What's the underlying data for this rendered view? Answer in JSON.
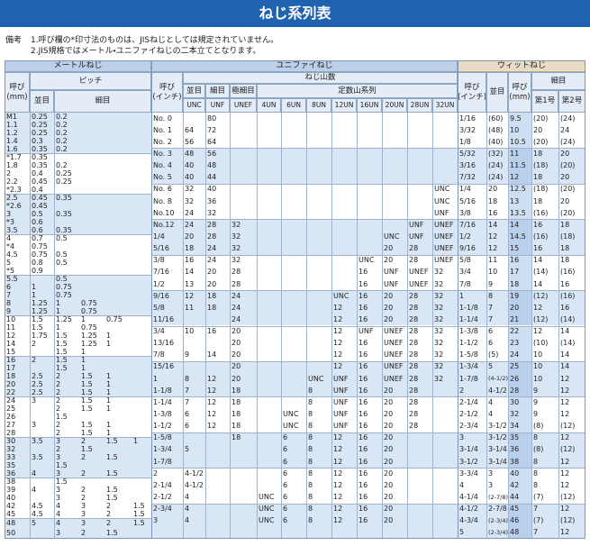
{
  "header": {
    "title": "ねじ系列表",
    "notes_label": "備考",
    "notes": [
      "1.呼び欄の*印寸法のものは、JISねじとしては規定されていません。",
      "2.JIS規格ではメートル・ユニファイねじの二本立てとなります。"
    ]
  },
  "metric": {
    "title": "メートルねじ",
    "nominal": [
      "呼び",
      "(mm)"
    ],
    "pitch": "ピッチ",
    "coarse": "並目",
    "fine": "細目",
    "blocks": [
      [
        [
          "M1",
          "0.25",
          "0.2"
        ],
        [
          "1.1",
          "0.25",
          "0.2"
        ],
        [
          "1.2",
          "0.25",
          "0.2"
        ],
        [
          "1.4",
          "0.3",
          "0.2"
        ],
        [
          "1.6",
          "0.35",
          "0.2"
        ]
      ],
      [
        [
          "*1.7",
          "0.35"
        ],
        [
          "1.8",
          "0.35",
          "0.2"
        ],
        [
          "2",
          "0.4",
          "0.25"
        ],
        [
          "2.2",
          "0.45",
          "0.25"
        ],
        [
          "*2.3",
          "0.4"
        ]
      ],
      [
        [
          "2.5",
          "0.45",
          "0.35"
        ],
        [
          "*2.6",
          "0.45"
        ],
        [
          "3",
          "0.5",
          "0.35"
        ],
        [
          "*3",
          "0.6"
        ],
        [
          "3.5",
          "0.6",
          "0.35"
        ]
      ],
      [
        [
          "4",
          "0.7",
          "0.5"
        ],
        [
          "*4",
          "0.75"
        ],
        [
          "4.5",
          "0.75",
          "0.5"
        ],
        [
          "5",
          "0.8",
          "0.5"
        ],
        [
          "*5",
          "0.9"
        ]
      ],
      [
        [
          "5.5",
          null,
          "0.5"
        ],
        [
          "6",
          "1",
          "0.75"
        ],
        [
          "7",
          "1",
          "0.75"
        ],
        [
          "8",
          "1.25",
          "1",
          "0.75"
        ],
        [
          "9",
          "1.25",
          "1",
          "0.75"
        ]
      ],
      [
        [
          "10",
          "1.5",
          "1.25",
          "1",
          "0.75"
        ],
        [
          "11",
          "1.5",
          "1",
          "0.75"
        ],
        [
          "12",
          "1.75",
          "1.5",
          "1.25",
          "1"
        ],
        [
          "14",
          "2",
          "1.5",
          "1.25",
          "1"
        ],
        [
          "15",
          null,
          "1.5",
          "1"
        ]
      ],
      [
        [
          "16",
          "2",
          "1.5",
          "1"
        ],
        [
          "17",
          null,
          "1.5",
          "1"
        ],
        [
          "18",
          "2.5",
          "2",
          "1.5",
          "1"
        ],
        [
          "20",
          "2.5",
          "2",
          "1.5",
          "1"
        ],
        [
          "22",
          "2.5",
          "2",
          "1.5",
          "1"
        ]
      ],
      [
        [
          "24",
          "3",
          "2",
          "1.5",
          "1"
        ],
        [
          "25",
          null,
          "2",
          "1.5",
          "1"
        ],
        [
          "26",
          null,
          "1.5"
        ],
        [
          "27",
          "3",
          "2",
          "1.5",
          "1"
        ],
        [
          "28",
          null,
          "2",
          "1.5",
          "1"
        ]
      ],
      [
        [
          "30",
          "3.5",
          "3",
          "2",
          "1.5",
          "1"
        ],
        [
          "32",
          null,
          "2",
          "1.5"
        ],
        [
          "33",
          "3.5",
          "3",
          "2",
          "1.5"
        ],
        [
          "35",
          null,
          "1.5"
        ],
        [
          "36",
          "4",
          "3",
          "2",
          "1.5"
        ]
      ],
      [
        [
          "38",
          null,
          "1.5"
        ],
        [
          "39",
          "4",
          "3",
          "2",
          "1.5"
        ],
        [
          "40",
          null,
          "3",
          "2",
          "1.5"
        ],
        [
          "42",
          "4.5",
          "4",
          "3",
          "2",
          "1.5"
        ],
        [
          "45",
          "4.5",
          "4",
          "3",
          "2",
          "1.5"
        ]
      ],
      [
        [
          "48",
          "5",
          "4",
          "3",
          "2",
          "1.5"
        ],
        [
          "50",
          null,
          "3",
          "2",
          "1.5"
        ]
      ]
    ]
  },
  "unified": {
    "title": "ユニファイねじ",
    "nominal": [
      "呼び",
      "(インチ)"
    ],
    "threads": "ねじ山数",
    "grades": [
      "並目",
      "細目",
      "極細目"
    ],
    "constant": "定数山系列",
    "codes": [
      "UNC",
      "UNF",
      "UNEF",
      "4UN",
      "6UN",
      "8UN",
      "12UN",
      "16UN",
      "20UN",
      "28UN",
      "32UN"
    ],
    "blocks": [
      [
        [
          "No. 0",
          null,
          "80"
        ],
        [
          "No. 1",
          "64",
          "72"
        ],
        [
          "No. 2",
          "56",
          "64"
        ]
      ],
      [
        [
          "No. 3",
          "48",
          "56"
        ],
        [
          "No. 4",
          "40",
          "48"
        ],
        [
          "No. 5",
          "40",
          "44"
        ]
      ],
      [
        [
          "No. 6",
          "32",
          "40",
          null,
          null,
          null,
          null,
          null,
          null,
          null,
          null,
          "UNC"
        ],
        [
          "No. 8",
          "32",
          "36",
          null,
          null,
          null,
          null,
          null,
          null,
          null,
          null,
          "UNC"
        ],
        [
          "No.10",
          "24",
          "32",
          null,
          null,
          null,
          null,
          null,
          null,
          null,
          null,
          "UNF"
        ]
      ],
      [
        [
          "No.12",
          "24",
          "28",
          "32",
          null,
          null,
          null,
          null,
          null,
          null,
          "UNF",
          "UNEF"
        ],
        [
          "1/4",
          "20",
          "28",
          "32",
          null,
          null,
          null,
          null,
          null,
          "UNC",
          "UNF",
          "UNEF"
        ],
        [
          "5/16",
          "18",
          "24",
          "32",
          null,
          null,
          null,
          null,
          null,
          "20",
          "28",
          "UNEF"
        ]
      ],
      [
        [
          "3/8",
          "16",
          "24",
          "32",
          null,
          null,
          null,
          null,
          "UNC",
          "20",
          "28",
          "UNEF"
        ],
        [
          "7/16",
          "14",
          "20",
          "28",
          null,
          null,
          null,
          null,
          "16",
          "UNF",
          "UNEF",
          "32"
        ],
        [
          "1/2",
          "13",
          "20",
          "28",
          null,
          null,
          null,
          null,
          "16",
          "UNF",
          "UNEF",
          "32"
        ]
      ],
      [
        [
          "9/16",
          "12",
          "18",
          "24",
          null,
          null,
          null,
          "UNC",
          "16",
          "20",
          "28",
          "32"
        ],
        [
          "5/8",
          "11",
          "18",
          "24",
          null,
          null,
          null,
          "12",
          "16",
          "20",
          "28",
          "32"
        ],
        [
          "11/16",
          null,
          null,
          "24",
          null,
          null,
          null,
          "12",
          "16",
          "20",
          "28",
          "32"
        ]
      ],
      [
        [
          "3/4",
          "10",
          "16",
          "20",
          null,
          null,
          null,
          "12",
          "UNF",
          "UNEF",
          "28",
          "32"
        ],
        [
          "13/16",
          null,
          null,
          "20",
          null,
          null,
          null,
          "12",
          "16",
          "UNEF",
          "28",
          "32"
        ],
        [
          "7/8",
          "9",
          "14",
          "20",
          null,
          null,
          null,
          "12",
          "16",
          "UNEF",
          "28",
          "32"
        ]
      ],
      [
        [
          "15/16",
          null,
          null,
          "20",
          null,
          null,
          null,
          "12",
          "16",
          "UNEF",
          "28",
          "32"
        ],
        [
          "1",
          "8",
          "12",
          "20",
          null,
          null,
          "UNC",
          "UNF",
          "16",
          "UNEF",
          "28",
          "32"
        ],
        [
          "1-1/8",
          "7",
          "12",
          "18",
          null,
          null,
          "8",
          "UNF",
          "16",
          "20",
          "28"
        ]
      ],
      [
        [
          "1-1/4",
          "7",
          "12",
          "18",
          null,
          null,
          "8",
          "UNF",
          "16",
          "20",
          "28"
        ],
        [
          "1-3/8",
          "6",
          "12",
          "18",
          null,
          "UNC",
          "8",
          "UNF",
          "16",
          "20",
          "28"
        ],
        [
          "1-1/2",
          "6",
          "12",
          "18",
          null,
          "UNC",
          "8",
          "UNF",
          "16",
          "20",
          "28"
        ]
      ],
      [
        [
          "1-5/8",
          null,
          null,
          "18",
          null,
          "6",
          "8",
          "12",
          "16",
          "20"
        ],
        [
          "1-3/4",
          "5",
          null,
          null,
          null,
          "6",
          "8",
          "12",
          "16",
          "20"
        ],
        [
          "1-7/8",
          null,
          null,
          null,
          null,
          "6",
          "8",
          "12",
          "16",
          "20"
        ]
      ],
      [
        [
          "2",
          "4-1/2",
          null,
          null,
          null,
          "6",
          "8",
          "12",
          "16",
          "20"
        ],
        [
          "2-1/4",
          "4-1/2",
          null,
          null,
          null,
          "6",
          "8",
          "12",
          "16",
          "20"
        ],
        [
          "2-1/2",
          "4",
          null,
          null,
          "UNC",
          "6",
          "8",
          "12",
          "16",
          "20"
        ]
      ],
      [
        [
          "2-3/4",
          "4",
          null,
          null,
          "UNC",
          "6",
          "8",
          "12",
          "16",
          "20"
        ],
        [
          "3",
          "4",
          null,
          null,
          "UNC",
          "6",
          "8",
          "12",
          "16",
          "20"
        ]
      ]
    ]
  },
  "whitworth": {
    "title": "ウィットねじ",
    "nominal": [
      "呼び",
      "(インチ)"
    ],
    "coarse": "並目",
    "nominal_mm": [
      "呼び",
      "(mm)"
    ],
    "fine": "細目",
    "fine_cols": [
      "第1号",
      "第2号"
    ],
    "blocks": [
      [
        [
          "1/16",
          "(60)",
          "9.5",
          "(20)",
          "(24)"
        ],
        [
          "3/32",
          "(48)",
          "10",
          "20",
          "24"
        ],
        [
          "1/8",
          "(40)",
          "10.5",
          "(20)",
          "(24)"
        ]
      ],
      [
        [
          "5/32",
          "(32)",
          "11",
          "18",
          "20"
        ],
        [
          "3/16",
          "(24)",
          "11.5",
          "(18)",
          "(20)"
        ],
        [
          "7/32",
          "(24)",
          "12",
          "18",
          "20"
        ]
      ],
      [
        [
          "1/4",
          "20",
          "12.5",
          "(18)",
          "(20)"
        ],
        [
          "5/16",
          "18",
          "13",
          "18",
          "20"
        ],
        [
          "3/8",
          "16",
          "13.5",
          "(16)",
          "(20)"
        ]
      ],
      [
        [
          "7/16",
          "14",
          "14",
          "16",
          "18"
        ],
        [
          "1/2",
          "12",
          "14.5",
          "(16)",
          "(18)"
        ],
        [
          "9/16",
          "12",
          "15",
          "16",
          "18"
        ]
      ],
      [
        [
          "5/8",
          "11",
          "16",
          "14",
          "18"
        ],
        [
          "3/4",
          "10",
          "17",
          "(14)",
          "(16)"
        ],
        [
          "7/8",
          "9",
          "18",
          "14",
          "16"
        ]
      ],
      [
        [
          "1",
          "8",
          "19",
          "(12)",
          "(16)"
        ],
        [
          "1-1/8",
          "7",
          "20",
          "12",
          "16"
        ],
        [
          "1-1/4",
          "7",
          "21",
          "(12)",
          "(14)"
        ]
      ],
      [
        [
          "1-3/8",
          "6",
          "22",
          "12",
          "14"
        ],
        [
          "1-1/2",
          "6",
          "23",
          "(10)",
          "(14)"
        ],
        [
          "1-5/8",
          "(5)",
          "24",
          "10",
          "14"
        ]
      ],
      [
        [
          "1-3/4",
          "5",
          "25",
          "10",
          "14"
        ],
        [
          "1-7/8",
          "(4-1/2)",
          "26",
          "10",
          "12"
        ],
        [
          "2",
          "4-1/2",
          "28",
          "9",
          "12"
        ]
      ],
      [
        [
          "2-1/4",
          "4",
          "30",
          "9",
          "12"
        ],
        [
          "2-1/2",
          "4",
          "32",
          "9",
          "12"
        ],
        [
          "2-3/4",
          "3-1/2",
          "34",
          "(8)",
          "(12)"
        ]
      ],
      [
        [
          "3",
          "3-1/2",
          "35",
          "8",
          "12"
        ],
        [
          "3-1/4",
          "3-1/4",
          "36",
          "(8)",
          "(12)"
        ],
        [
          "3-1/2",
          "3-1/4",
          "38",
          "8",
          "12"
        ]
      ],
      [
        [
          "3-3/4",
          "3",
          "40",
          "8",
          "12"
        ],
        [
          "4",
          "3",
          "42",
          "8",
          "12"
        ],
        [
          "4-1/4",
          "(2-7/8)",
          "44",
          "(7)",
          "(12)"
        ]
      ],
      [
        [
          "4-1/2",
          "2-7/8",
          "45",
          "7",
          "12"
        ],
        [
          "4-3/4",
          "(2-3/4)",
          "46",
          "(7)",
          "(12)"
        ],
        [
          "5",
          "(2-3/4)",
          "48",
          "7",
          "12"
        ]
      ]
    ]
  }
}
